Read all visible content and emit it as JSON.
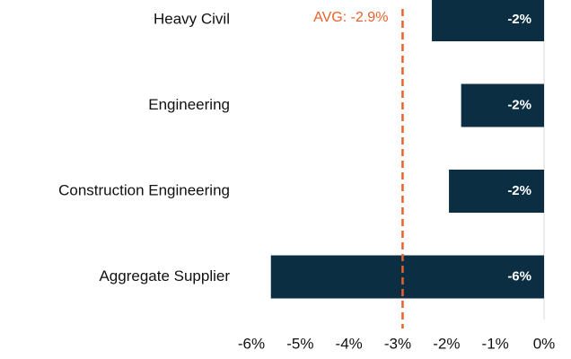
{
  "chart_data": {
    "type": "bar",
    "orientation": "horizontal",
    "categories": [
      "Heavy Civil",
      "Engineering",
      "Construction Engineering",
      "Aggregate Supplier"
    ],
    "values": [
      -2.3,
      -1.7,
      -1.95,
      -5.6
    ],
    "value_labels": [
      "-2%",
      "-2%",
      "-2%",
      "-6%"
    ],
    "color": "#0b2e43",
    "xlim": [
      -6,
      0
    ],
    "xticks": [
      {
        "value": -6,
        "label": "-6%"
      },
      {
        "value": -5,
        "label": "-5%"
      },
      {
        "value": -4,
        "label": "-4%"
      },
      {
        "value": -3,
        "label": "-3%"
      },
      {
        "value": -2,
        "label": "-2%"
      },
      {
        "value": -1,
        "label": "-1%"
      },
      {
        "value": 0,
        "label": "0%"
      }
    ],
    "reference_line": {
      "value": -2.9,
      "label": "AVG: -2.9%",
      "color": "#e8622c"
    }
  }
}
